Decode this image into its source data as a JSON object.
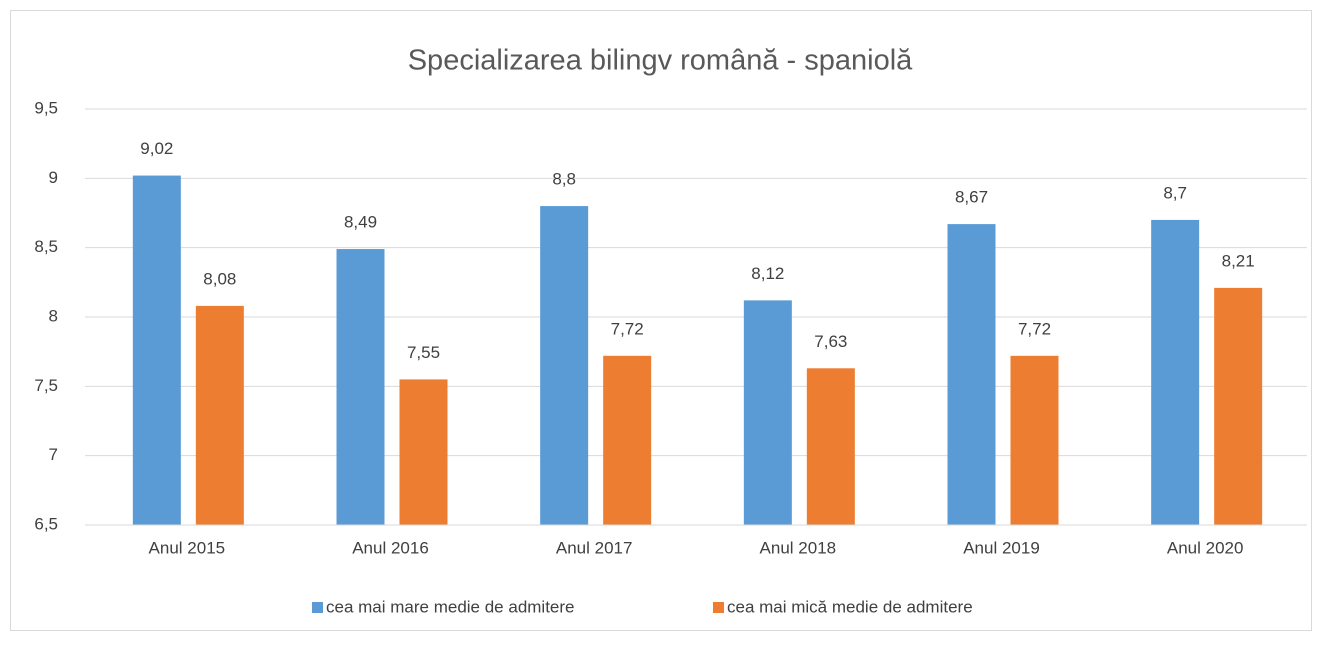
{
  "chart_data": {
    "type": "bar",
    "title": "Specializarea bilingv română - spaniolă",
    "categories": [
      "Anul 2015",
      "Anul 2016",
      "Anul 2017",
      "Anul 2018",
      "Anul 2019",
      "Anul 2020"
    ],
    "series": [
      {
        "name": "cea mai mare medie de admitere",
        "color": "#5b9bd5",
        "values": [
          9.02,
          8.49,
          8.8,
          8.12,
          8.67,
          8.7
        ],
        "value_labels": [
          "9,02",
          "8,49",
          "8,8",
          "8,12",
          "8,67",
          "8,7"
        ]
      },
      {
        "name": "cea mai mică medie de admitere",
        "color": "#ed7d31",
        "values": [
          8.08,
          7.55,
          7.72,
          7.63,
          7.72,
          8.21
        ],
        "value_labels": [
          "8,08",
          "7,55",
          "7,72",
          "7,63",
          "7,72",
          "8,21"
        ]
      }
    ],
    "ylim": [
      6.5,
      9.5
    ],
    "yticks": [
      {
        "value": 6.5,
        "label": "6,5"
      },
      7,
      {
        "value": 7.5,
        "label": "7,5"
      },
      8,
      {
        "value": 8.5,
        "label": "8,5"
      },
      9,
      {
        "value": 9.5,
        "label": "9,5"
      }
    ],
    "grid": true,
    "legend": "bottom"
  }
}
